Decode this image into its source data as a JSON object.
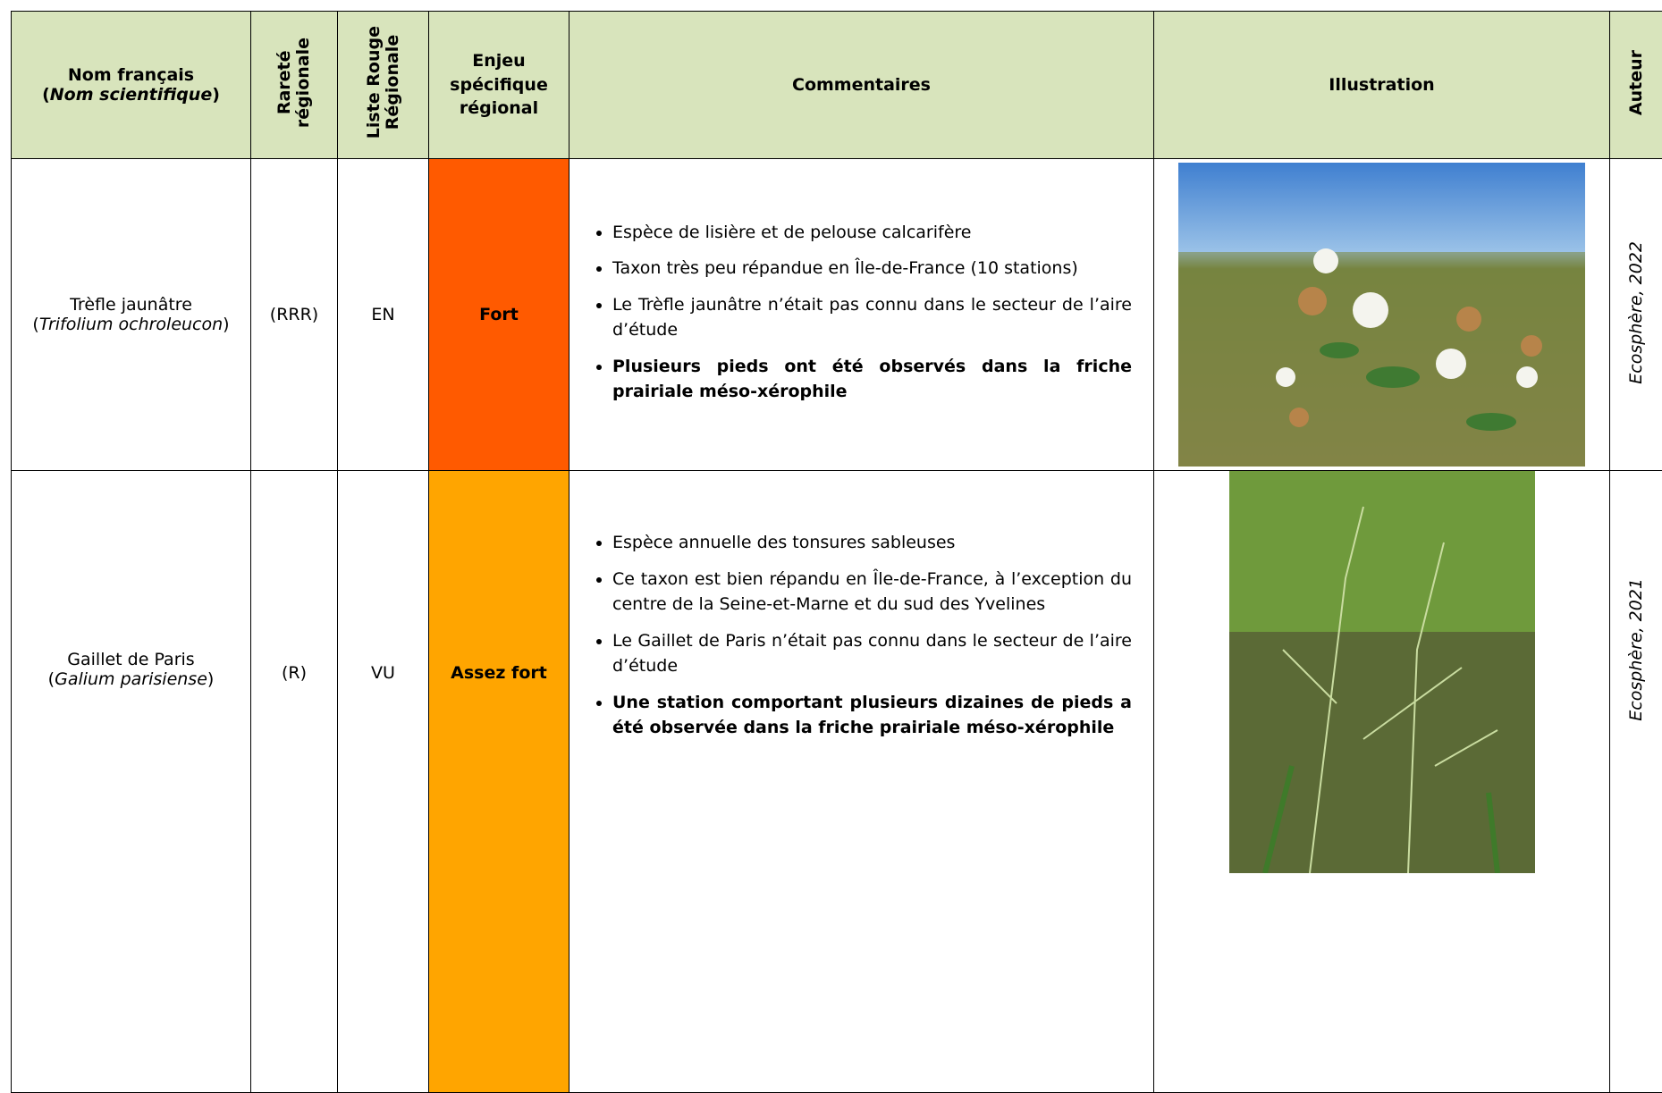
{
  "table": {
    "header": {
      "name": {
        "line1": "Nom français",
        "open": "(",
        "scientific": "Nom scientifique",
        "close": ")"
      },
      "rarity": [
        "Rareté",
        "régionale"
      ],
      "red_list": [
        "Liste Rouge",
        "Régionale"
      ],
      "stake": [
        "Enjeu",
        "spécifique",
        "régional"
      ],
      "comments": "Commentaires",
      "illustration": "Illustration",
      "author": "Auteur"
    },
    "rows": [
      {
        "name": "Trèfle jaunâtre",
        "scientific": {
          "open": "(",
          "name": "Trifolium ochroleucon",
          "close": ")"
        },
        "rarity": "(RRR)",
        "red_list": "EN",
        "stake": "Fort",
        "stake_color": "#ff5a00",
        "comments": [
          {
            "text": "Espèce de lisière et de pelouse calcarifère",
            "bold": false
          },
          {
            "text": "Taxon très peu répandue en Île-de-France (10 stations)",
            "bold": false
          },
          {
            "text": "Le Trèfle jaunâtre n’était pas connu dans le secteur de l’aire d’étude",
            "bold": false
          },
          {
            "text": "Plusieurs pieds ont été observés dans la friche prairiale méso-xérophile",
            "bold": true
          }
        ],
        "author": "Ecosphère, 2022"
      },
      {
        "name": "Gaillet de Paris",
        "scientific": {
          "open": "(",
          "name": "Galium parisiense",
          "close": ")"
        },
        "rarity": "(R)",
        "red_list": "VU",
        "stake": "Assez fort",
        "stake_color": "#ffa500",
        "comments": [
          {
            "text": "Espèce annuelle des tonsures sableuses",
            "bold": false
          },
          {
            "text": "Ce taxon est bien répandu en Île-de-France, à l’exception du centre de la Seine-et-Marne et du sud des Yvelines",
            "bold": false
          },
          {
            "text": "Le Gaillet de Paris n’était pas connu dans le secteur de l’aire d’étude",
            "bold": false
          },
          {
            "text": "Une station comportant plusieurs dizaines de pieds a été observée dans la friche prairiale méso-xérophile",
            "bold": true
          }
        ],
        "author": "Ecosphère, 2021"
      }
    ]
  }
}
